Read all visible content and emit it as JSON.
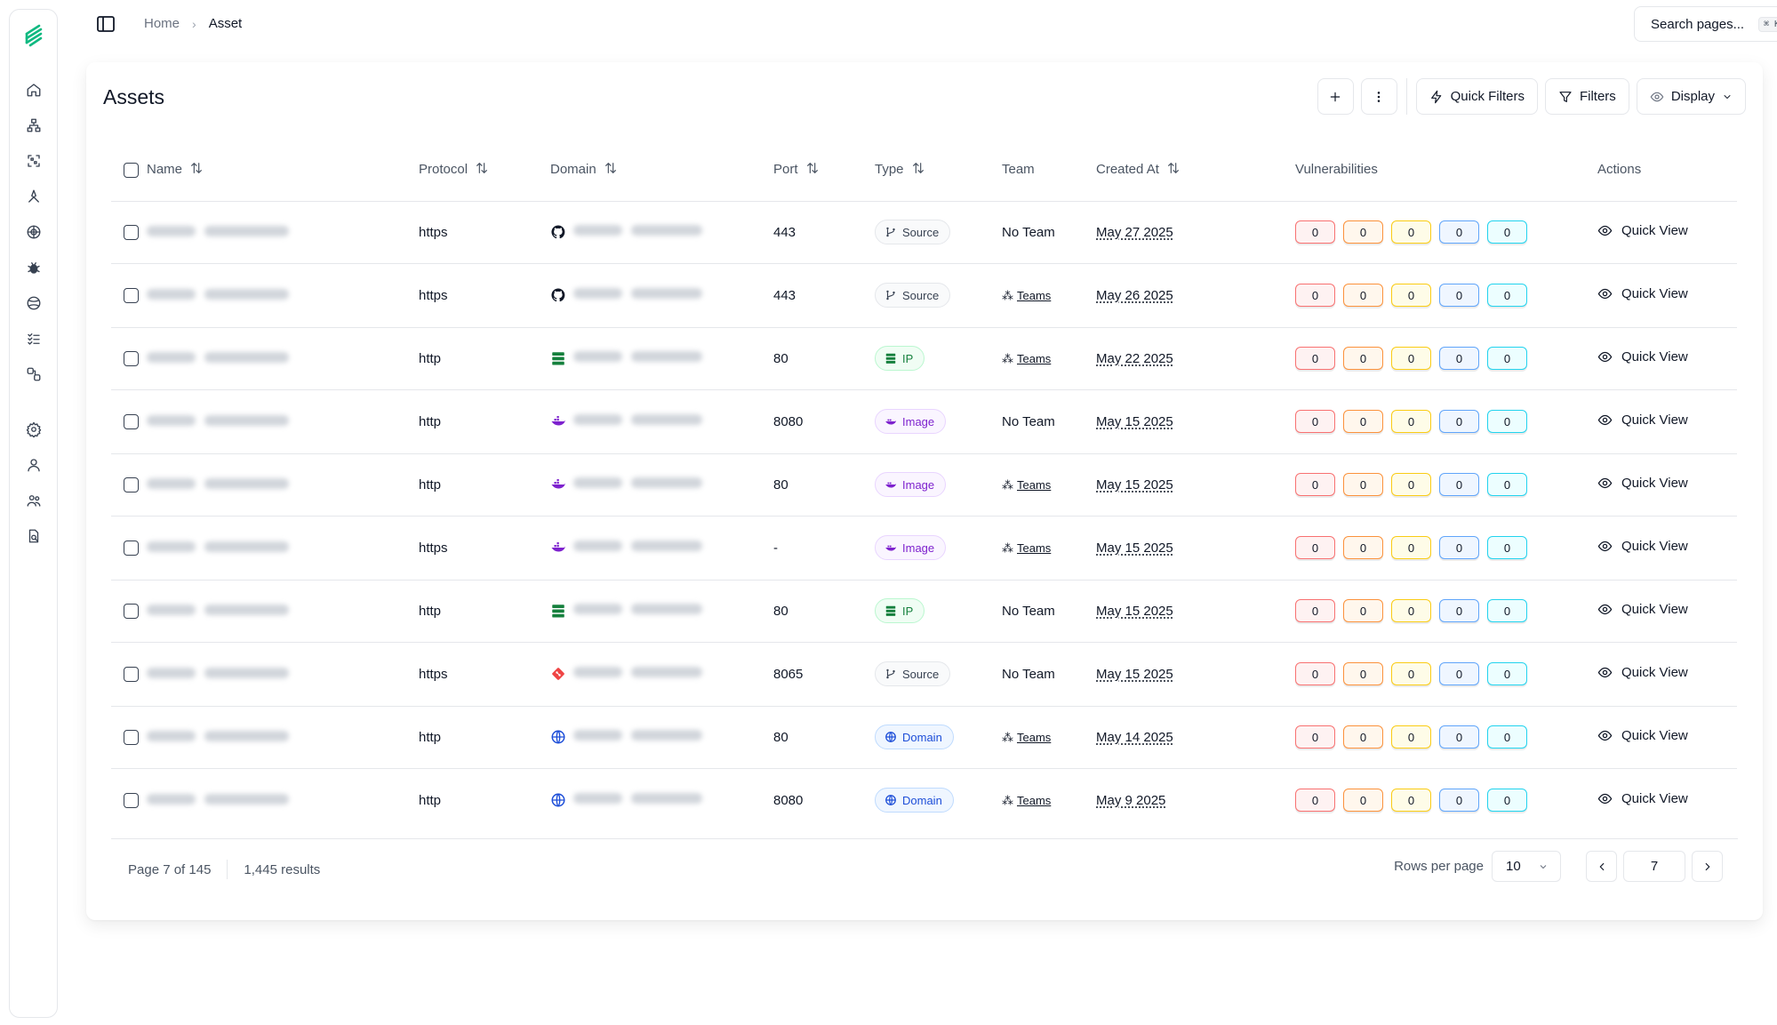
{
  "breadcrumb": {
    "home": "Home",
    "current": "Asset"
  },
  "search": {
    "label": "Search pages...",
    "shortcut": "⌘ K"
  },
  "page": {
    "title": "Assets"
  },
  "toolbar": {
    "quick_filters": "Quick Filters",
    "filters": "Filters",
    "display": "Display"
  },
  "columns": {
    "name": "Name",
    "protocol": "Protocol",
    "domain": "Domain",
    "port": "Port",
    "type": "Type",
    "team": "Team",
    "created_at": "Created At",
    "vulnerabilities": "Vulnerabilities",
    "actions": "Actions"
  },
  "colors": {
    "brand": "#10b981",
    "critical": "#f87171",
    "high": "#fb923c",
    "medium": "#facc15",
    "low": "#60a5fa",
    "info": "#22d3ee"
  },
  "rows": [
    {
      "protocol": "https",
      "domain_icon": "github-icon",
      "port": "443",
      "type": "Source",
      "team": "No Team",
      "created": "May 27 2025",
      "vulns": [
        "0",
        "0",
        "0",
        "0",
        "0"
      ],
      "action": "Quick View"
    },
    {
      "protocol": "https",
      "domain_icon": "github-icon",
      "port": "443",
      "type": "Source",
      "team": "Teams",
      "created": "May 26 2025",
      "vulns": [
        "0",
        "0",
        "0",
        "0",
        "0"
      ],
      "action": "Quick View"
    },
    {
      "protocol": "http",
      "domain_icon": "server-icon",
      "port": "80",
      "type": "IP",
      "team": "Teams",
      "created": "May 22 2025",
      "vulns": [
        "0",
        "0",
        "0",
        "0",
        "0"
      ],
      "action": "Quick View"
    },
    {
      "protocol": "http",
      "domain_icon": "docker-icon",
      "port": "8080",
      "type": "Image",
      "team": "No Team",
      "created": "May 15 2025",
      "vulns": [
        "0",
        "0",
        "0",
        "0",
        "0"
      ],
      "action": "Quick View"
    },
    {
      "protocol": "http",
      "domain_icon": "docker-icon",
      "port": "80",
      "type": "Image",
      "team": "Teams",
      "created": "May 15 2025",
      "vulns": [
        "0",
        "0",
        "0",
        "0",
        "0"
      ],
      "action": "Quick View"
    },
    {
      "protocol": "https",
      "domain_icon": "docker-icon",
      "port": "-",
      "type": "Image",
      "team": "Teams",
      "created": "May 15 2025",
      "vulns": [
        "0",
        "0",
        "0",
        "0",
        "0"
      ],
      "action": "Quick View"
    },
    {
      "protocol": "http",
      "domain_icon": "server-icon",
      "port": "80",
      "type": "IP",
      "team": "No Team",
      "created": "May 15 2025",
      "vulns": [
        "0",
        "0",
        "0",
        "0",
        "0"
      ],
      "action": "Quick View"
    },
    {
      "protocol": "https",
      "domain_icon": "git-icon",
      "port": "8065",
      "type": "Source",
      "team": "No Team",
      "created": "May 15 2025",
      "vulns": [
        "0",
        "0",
        "0",
        "0",
        "0"
      ],
      "action": "Quick View"
    },
    {
      "protocol": "http",
      "domain_icon": "globe-icon",
      "port": "80",
      "type": "Domain",
      "team": "Teams",
      "created": "May 14 2025",
      "vulns": [
        "0",
        "0",
        "0",
        "0",
        "0"
      ],
      "action": "Quick View"
    },
    {
      "protocol": "http",
      "domain_icon": "globe-icon",
      "port": "8080",
      "type": "Domain",
      "team": "Teams",
      "created": "May 9 2025",
      "vulns": [
        "0",
        "0",
        "0",
        "0",
        "0"
      ],
      "action": "Quick View"
    }
  ],
  "footer": {
    "page_info": "Page 7 of 145",
    "results": "1,445 results",
    "rows_per_page_label": "Rows per page",
    "rows_per_page": "10",
    "current_page": "7"
  }
}
